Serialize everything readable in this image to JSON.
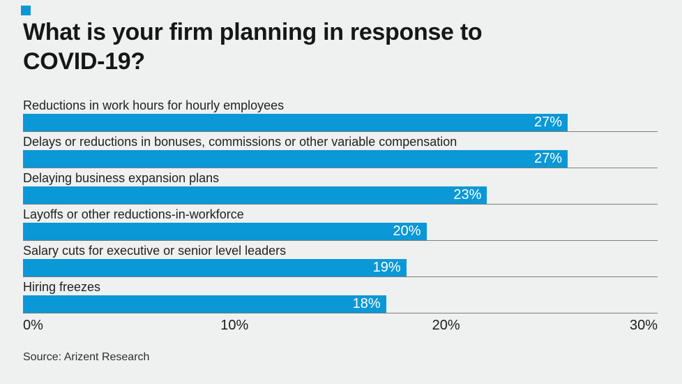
{
  "brand": {
    "accent_color": "#0a98d6",
    "square_mark": "blue-square"
  },
  "title": {
    "full": "What is your firm planning in response to COVID-19?",
    "line1": "What is your firm planning in response to",
    "line2": "COVID-19?"
  },
  "chart_data": {
    "type": "bar",
    "orientation": "horizontal",
    "title": "What is your firm planning in response to COVID-19?",
    "categories": [
      "Reductions in work hours for hourly employees",
      "Delays or reductions in bonuses, commissions or other variable compensation",
      "Delaying business expansion plans",
      "Layoffs or other reductions-in-workforce",
      "Salary cuts for executive or senior level leaders",
      "Hiring freezes"
    ],
    "values": [
      27,
      27,
      23,
      20,
      19,
      18
    ],
    "value_labels": [
      "27%",
      "27%",
      "23%",
      "20%",
      "19%",
      "18%"
    ],
    "xlabel": "",
    "ylabel": "",
    "xlim": [
      0,
      30
    ],
    "x_ticks": [
      "0%",
      "10%",
      "20%",
      "30%"
    ],
    "grid": "horizontal separator line under each bar",
    "legend": "none",
    "bar_color": "#0a98d6",
    "value_label_position": "inside-right",
    "value_label_color": "#ffffff"
  },
  "source": "Source: Arizent Research"
}
